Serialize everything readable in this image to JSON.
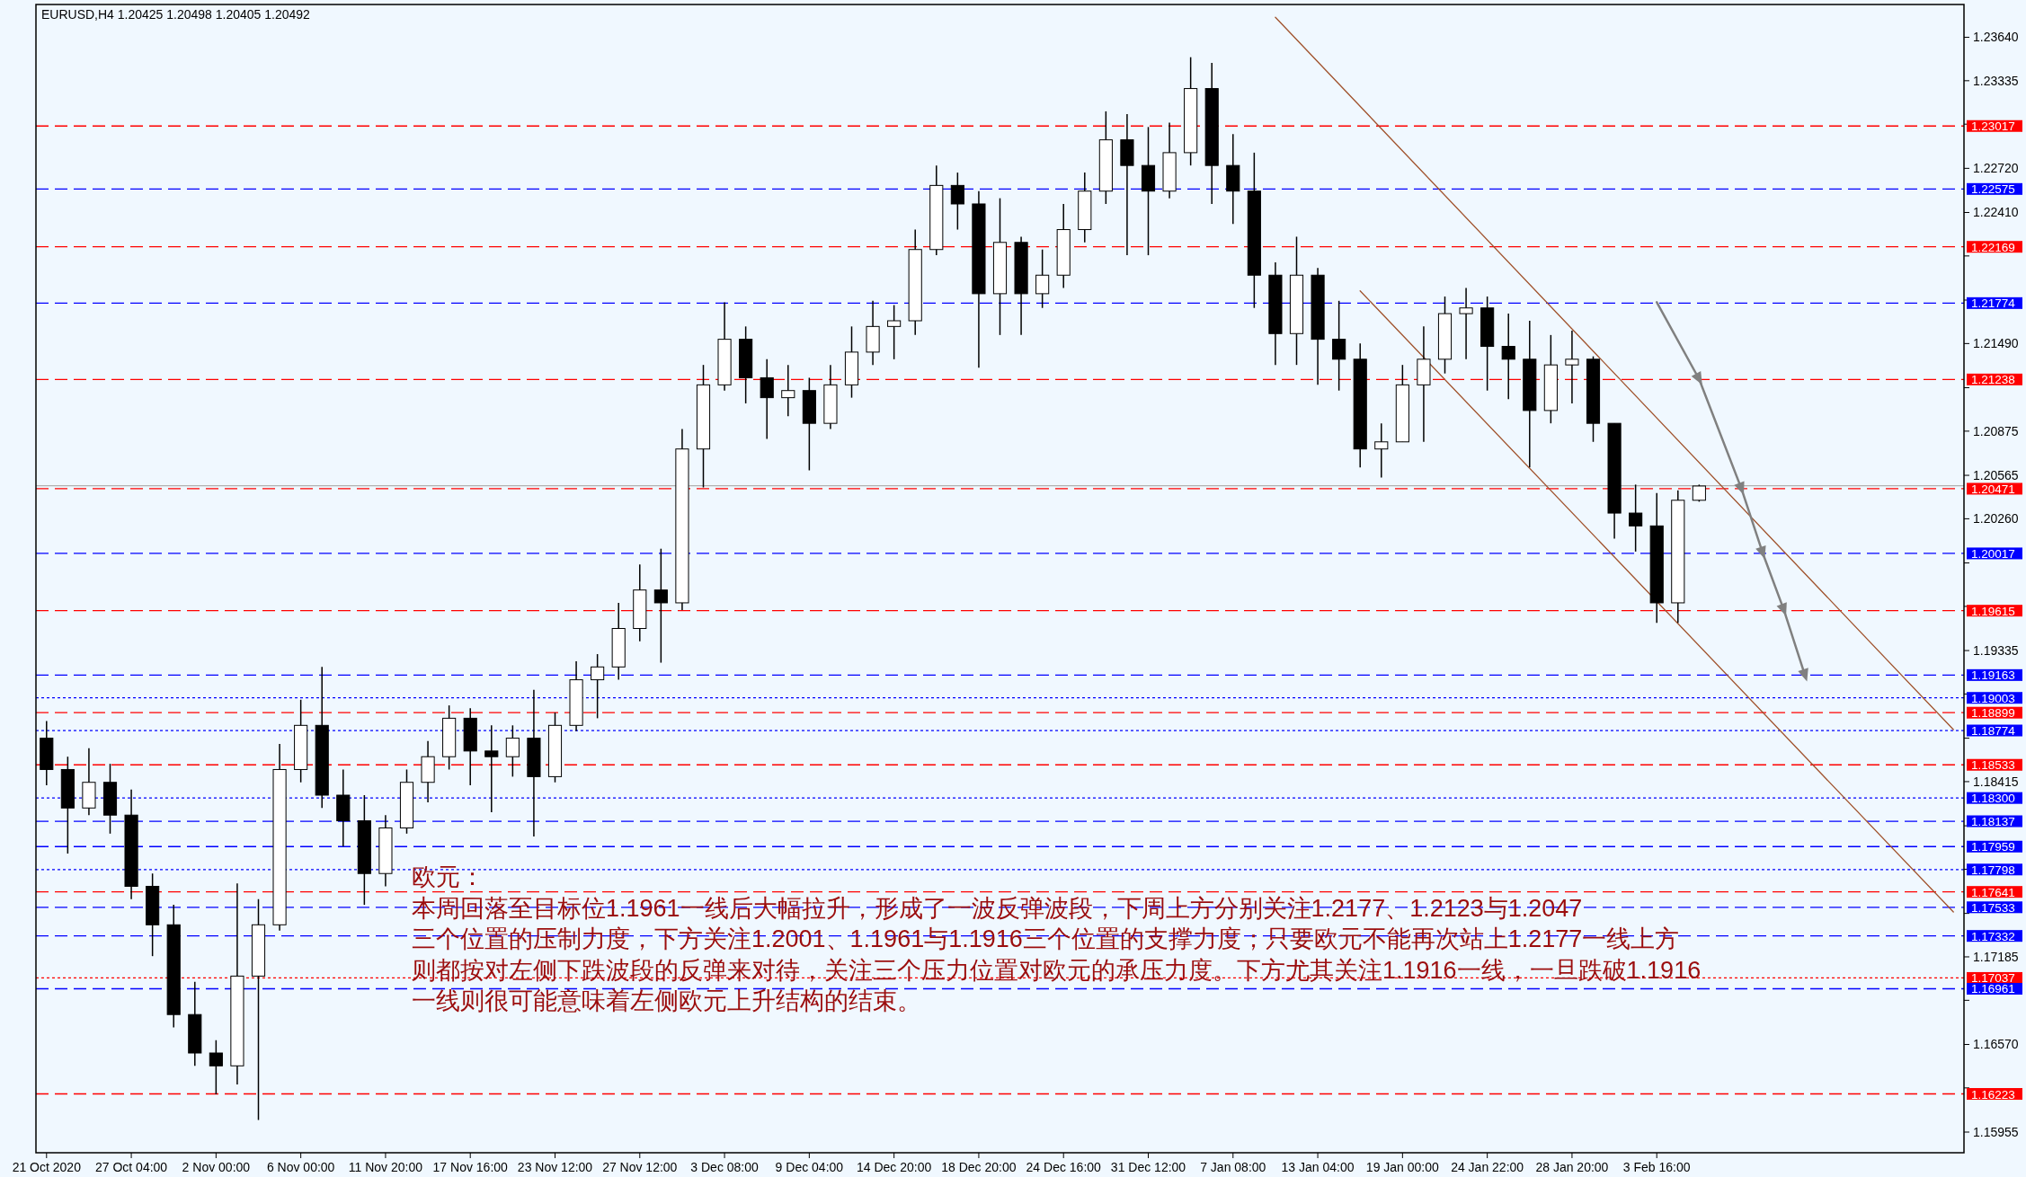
{
  "chart_data": {
    "type": "candlestick",
    "title": "EURUSD,H4  1.20425 1.20498 1.20405 1.20492",
    "categories": [
      "21 Oct 2020",
      null,
      null,
      null,
      "27 Oct 04:00",
      null,
      null,
      null,
      "2 Nov 00:00",
      null,
      null,
      null,
      "6 Nov 00:00",
      null,
      null,
      null,
      "11 Nov 20:00",
      null,
      null,
      null,
      "17 Nov 16:00",
      null,
      null,
      null,
      "23 Nov 12:00",
      null,
      null,
      null,
      "27 Nov 12:00",
      null,
      null,
      null,
      "3 Dec 08:00",
      null,
      null,
      null,
      "9 Dec 04:00",
      null,
      null,
      null,
      "14 Dec 20:00",
      null,
      null,
      null,
      "18 Dec 20:00",
      null,
      null,
      null,
      "24 Dec 16:00",
      null,
      null,
      null,
      "31 Dec 12:00",
      null,
      null,
      null,
      "7 Jan 08:00",
      null,
      null,
      null,
      "13 Jan 04:00",
      null,
      null,
      null,
      "19 Jan 00:00",
      null,
      null,
      null,
      "24 Jan 22:00",
      null,
      null,
      null,
      "28 Jan 20:00",
      null,
      null,
      null,
      "3 Feb 16:00",
      null,
      null,
      null,
      null,
      null,
      null,
      null,
      null,
      null,
      null,
      null,
      null,
      null,
      null
    ],
    "ohlc": [
      [
        1.1872,
        1.1884,
        1.1839,
        1.185
      ],
      [
        1.185,
        1.1859,
        1.1791,
        1.1823
      ],
      [
        1.1823,
        1.1865,
        1.1818,
        1.1841
      ],
      [
        1.1841,
        1.1854,
        1.1805,
        1.1818
      ],
      [
        1.1818,
        1.1836,
        1.1759,
        1.1768
      ],
      [
        1.1768,
        1.1777,
        1.1719,
        1.1741
      ],
      [
        1.1741,
        1.1755,
        1.1669,
        1.1678
      ],
      [
        1.1678,
        1.1701,
        1.1642,
        1.1651
      ],
      [
        1.1651,
        1.166,
        1.1622,
        1.1642
      ],
      [
        1.1642,
        1.177,
        1.1629,
        1.1705
      ],
      [
        1.1705,
        1.1759,
        1.1604,
        1.1741
      ],
      [
        1.1741,
        1.1868,
        1.1737,
        1.185
      ],
      [
        1.185,
        1.1899,
        1.1841,
        1.1881
      ],
      [
        1.1881,
        1.1922,
        1.1823,
        1.1832
      ],
      [
        1.1832,
        1.185,
        1.1796,
        1.1814
      ],
      [
        1.1814,
        1.1832,
        1.1755,
        1.1777
      ],
      [
        1.1777,
        1.1818,
        1.1768,
        1.1809
      ],
      [
        1.1809,
        1.185,
        1.1805,
        1.1841
      ],
      [
        1.1841,
        1.187,
        1.1827,
        1.1859
      ],
      [
        1.1859,
        1.1895,
        1.185,
        1.1886
      ],
      [
        1.1886,
        1.1893,
        1.1839,
        1.1863
      ],
      [
        1.1863,
        1.1881,
        1.182,
        1.1859
      ],
      [
        1.1859,
        1.1881,
        1.1845,
        1.1872
      ],
      [
        1.1872,
        1.1906,
        1.1803,
        1.1845
      ],
      [
        1.1845,
        1.189,
        1.1841,
        1.1881
      ],
      [
        1.1881,
        1.1926,
        1.1877,
        1.1913
      ],
      [
        1.1913,
        1.1931,
        1.1886,
        1.1922
      ],
      [
        1.1922,
        1.1967,
        1.1913,
        1.1949
      ],
      [
        1.1949,
        1.1994,
        1.194,
        1.1976
      ],
      [
        1.1976,
        1.2005,
        1.1925,
        1.1967
      ],
      [
        1.1967,
        1.2089,
        1.1962,
        1.2075
      ],
      [
        1.2075,
        1.2134,
        1.2048,
        1.212
      ],
      [
        1.212,
        1.2178,
        1.2116,
        1.2152
      ],
      [
        1.2152,
        1.2161,
        1.2107,
        1.2125
      ],
      [
        1.2125,
        1.2138,
        1.2082,
        1.2111
      ],
      [
        1.2111,
        1.2134,
        1.2098,
        1.2116
      ],
      [
        1.2116,
        1.2125,
        1.206,
        1.2093
      ],
      [
        1.2093,
        1.2134,
        1.2089,
        1.212
      ],
      [
        1.212,
        1.2161,
        1.2111,
        1.2143
      ],
      [
        1.2143,
        1.2179,
        1.2134,
        1.2161
      ],
      [
        1.2161,
        1.2176,
        1.2138,
        1.2165
      ],
      [
        1.2165,
        1.2229,
        1.2155,
        1.2215
      ],
      [
        1.2215,
        1.2274,
        1.2211,
        1.226
      ],
      [
        1.226,
        1.2269,
        1.2229,
        1.2247
      ],
      [
        1.2247,
        1.2256,
        1.2132,
        1.2184
      ],
      [
        1.2184,
        1.2251,
        1.2155,
        1.222
      ],
      [
        1.222,
        1.2224,
        1.2155,
        1.2184
      ],
      [
        1.2184,
        1.2215,
        1.2174,
        1.2197
      ],
      [
        1.2197,
        1.2247,
        1.2188,
        1.2229
      ],
      [
        1.2229,
        1.2269,
        1.222,
        1.2256
      ],
      [
        1.2256,
        1.2312,
        1.2247,
        1.2292
      ],
      [
        1.2292,
        1.231,
        1.2211,
        1.2274
      ],
      [
        1.2274,
        1.2301,
        1.2211,
        1.2256
      ],
      [
        1.2256,
        1.2304,
        1.2251,
        1.2283
      ],
      [
        1.2283,
        1.235,
        1.2274,
        1.2328
      ],
      [
        1.2328,
        1.2346,
        1.2247,
        1.2274
      ],
      [
        1.2274,
        1.2296,
        1.2233,
        1.2256
      ],
      [
        1.2256,
        1.2283,
        1.2174,
        1.2197
      ],
      [
        1.2197,
        1.2206,
        1.2134,
        1.2156
      ],
      [
        1.2156,
        1.2224,
        1.2134,
        1.2197
      ],
      [
        1.2197,
        1.2202,
        1.212,
        1.2152
      ],
      [
        1.2152,
        1.2179,
        1.2116,
        1.2138
      ],
      [
        1.2138,
        1.2149,
        1.2062,
        1.2075
      ],
      [
        1.2075,
        1.2093,
        1.2055,
        1.208
      ],
      [
        1.208,
        1.2134,
        1.208,
        1.212
      ],
      [
        1.212,
        1.2161,
        1.208,
        1.2138
      ],
      [
        1.2138,
        1.2182,
        1.2128,
        1.217
      ],
      [
        1.217,
        1.2188,
        1.2138,
        1.2174
      ],
      [
        1.2174,
        1.2182,
        1.2116,
        1.2147
      ],
      [
        1.2147,
        1.217,
        1.211,
        1.2138
      ],
      [
        1.2138,
        1.2165,
        1.2062,
        1.2102
      ],
      [
        1.2102,
        1.2155,
        1.2093,
        1.2134
      ],
      [
        1.2134,
        1.2158,
        1.2107,
        1.2138
      ],
      [
        1.2138,
        1.214,
        1.208,
        1.2093
      ],
      [
        1.2093,
        1.2093,
        1.2012,
        1.203
      ],
      [
        1.203,
        1.205,
        1.2003,
        1.2021
      ],
      [
        1.2021,
        1.2044,
        1.1953,
        1.1967
      ],
      [
        1.1967,
        1.2046,
        1.1953,
        1.2039
      ],
      [
        1.2039,
        1.205,
        1.2038,
        1.2049
      ],
      null,
      null,
      null,
      null,
      null,
      null,
      null,
      null,
      null,
      null,
      null,
      null
    ],
    "series": [
      {
        "type": "line",
        "color": "#a0522d",
        "values": [
          null,
          null,
          null,
          null,
          null,
          null,
          null,
          null,
          null,
          null,
          null,
          null,
          null,
          null,
          null,
          null,
          null,
          null,
          null,
          null,
          null,
          null,
          null,
          null,
          null,
          null,
          null,
          null,
          null,
          null,
          null,
          null,
          null,
          null,
          null,
          null,
          null,
          null,
          null,
          null,
          null,
          null,
          null,
          null,
          null,
          null,
          null,
          null,
          null,
          null,
          null,
          null,
          null,
          null,
          null,
          null,
          null,
          null,
          1.2378,
          null,
          null,
          null,
          null,
          null,
          null,
          null,
          null,
          null,
          null,
          null,
          null,
          null,
          null,
          null,
          null,
          null,
          null,
          null,
          null,
          null,
          null,
          null,
          null,
          null,
          null,
          null,
          null,
          null,
          null,
          null,
          1.1878
        ]
      },
      {
        "type": "line",
        "color": "#a0522d",
        "values": [
          null,
          null,
          null,
          null,
          null,
          null,
          null,
          null,
          null,
          null,
          null,
          null,
          null,
          null,
          null,
          null,
          null,
          null,
          null,
          null,
          null,
          null,
          null,
          null,
          null,
          null,
          null,
          null,
          null,
          null,
          null,
          null,
          null,
          null,
          null,
          null,
          null,
          null,
          null,
          null,
          null,
          null,
          null,
          null,
          null,
          null,
          null,
          null,
          null,
          null,
          null,
          null,
          null,
          null,
          null,
          null,
          null,
          null,
          null,
          null,
          null,
          null,
          1.2186,
          null,
          null,
          null,
          null,
          null,
          null,
          null,
          null,
          null,
          null,
          null,
          null,
          null,
          null,
          null,
          null,
          null,
          null,
          null,
          null,
          null,
          null,
          null,
          null,
          null,
          null,
          null,
          1.175
        ]
      },
      {
        "type": "line",
        "color": "#808080",
        "marker": "triangle",
        "values": [
          null,
          null,
          null,
          null,
          null,
          null,
          null,
          null,
          null,
          null,
          null,
          null,
          null,
          null,
          null,
          null,
          null,
          null,
          null,
          null,
          null,
          null,
          null,
          null,
          null,
          null,
          null,
          null,
          null,
          null,
          null,
          null,
          null,
          null,
          null,
          null,
          null,
          null,
          null,
          null,
          null,
          null,
          null,
          null,
          null,
          null,
          null,
          null,
          null,
          null,
          null,
          null,
          null,
          null,
          null,
          null,
          null,
          null,
          null,
          null,
          null,
          null,
          null,
          null,
          null,
          null,
          null,
          null,
          null,
          null,
          null,
          null,
          null,
          null,
          null,
          null,
          1.2178,
          null,
          1.2124,
          null,
          1.2047,
          1.2002,
          1.1962,
          1.1916,
          null,
          null,
          null,
          null,
          null,
          null,
          null
        ]
      }
    ],
    "ylim": [
      1.1581,
      1.2387
    ],
    "yticks": [
      {
        "value": 1.2364,
        "label": "1.23640"
      },
      {
        "value": 1.23335,
        "label": "1.23335"
      },
      {
        "value": 1.2303,
        "label": null
      },
      {
        "value": 1.2272,
        "label": "1.22720"
      },
      {
        "value": 1.2241,
        "label": "1.22410"
      },
      {
        "value": 1.22105,
        "label": null
      },
      {
        "value": 1.21795,
        "label": null
      },
      {
        "value": 1.2149,
        "label": "1.21490"
      },
      {
        "value": 1.2118,
        "label": null
      },
      {
        "value": 1.20875,
        "label": "1.20875"
      },
      {
        "value": 1.20565,
        "label": "1.20565"
      },
      {
        "value": 1.2026,
        "label": "1.20260"
      },
      {
        "value": 1.1995,
        "label": null
      },
      {
        "value": 1.19645,
        "label": null
      },
      {
        "value": 1.19335,
        "label": "1.19335"
      },
      {
        "value": 1.1903,
        "label": null
      },
      {
        "value": 1.1872,
        "label": null
      },
      {
        "value": 1.18415,
        "label": "1.18415"
      },
      {
        "value": 1.18105,
        "label": null
      },
      {
        "value": 1.178,
        "label": null
      },
      {
        "value": 1.1749,
        "label": null
      },
      {
        "value": 1.17185,
        "label": "1.17185"
      },
      {
        "value": 1.1688,
        "label": null
      },
      {
        "value": 1.1657,
        "label": "1.16570"
      },
      {
        "value": 1.16265,
        "label": null
      },
      {
        "value": 1.15955,
        "label": "1.15955"
      }
    ],
    "ref_lines": [
      {
        "axis": "y",
        "value": 1.20492,
        "color": "#b0b0b0",
        "line_style": "solid"
      },
      {
        "axis": "y",
        "value": 1.23017,
        "label": "1.23017",
        "color": "#ff0000",
        "line_style": "dashed"
      },
      {
        "axis": "y",
        "value": 1.22575,
        "label": "1.22575",
        "color": "#0000ff",
        "line_style": "dashed"
      },
      {
        "axis": "y",
        "value": 1.22169,
        "label": "1.22169",
        "color": "#ff0000",
        "line_style": "dashed"
      },
      {
        "axis": "y",
        "value": 1.21774,
        "label": "1.21774",
        "color": "#0000ff",
        "line_style": "dashed"
      },
      {
        "axis": "y",
        "value": 1.21238,
        "label": "1.21238",
        "color": "#ff0000",
        "line_style": "dashed"
      },
      {
        "axis": "y",
        "value": 1.20471,
        "label": "1.20471",
        "color": "#ff0000",
        "line_style": "dashed"
      },
      {
        "axis": "y",
        "value": 1.20017,
        "label": "1.20017",
        "color": "#0000ff",
        "line_style": "dashed"
      },
      {
        "axis": "y",
        "value": 1.19615,
        "label": "1.19615",
        "color": "#ff0000",
        "line_style": "dashed"
      },
      {
        "axis": "y",
        "value": 1.19163,
        "label": "1.19163",
        "color": "#0000ff",
        "line_style": "dashed"
      },
      {
        "axis": "y",
        "value": 1.19003,
        "label": "1.19003",
        "color": "#0000ff",
        "line_style": "dotted"
      },
      {
        "axis": "y",
        "value": 1.18899,
        "label": "1.18899",
        "color": "#ff0000",
        "line_style": "dashed"
      },
      {
        "axis": "y",
        "value": 1.18774,
        "label": "1.18774",
        "color": "#0000ff",
        "line_style": "dotted"
      },
      {
        "axis": "y",
        "value": 1.18533,
        "label": "1.18533",
        "color": "#ff0000",
        "line_style": "dashed"
      },
      {
        "axis": "y",
        "value": 1.183,
        "label": "1.18300",
        "color": "#0000ff",
        "line_style": "dotted"
      },
      {
        "axis": "y",
        "value": 1.18137,
        "label": "1.18137",
        "color": "#0000ff",
        "line_style": "dashed"
      },
      {
        "axis": "y",
        "value": 1.17959,
        "label": "1.17959",
        "color": "#0000ff",
        "line_style": "dashed"
      },
      {
        "axis": "y",
        "value": 1.17798,
        "label": "1.17798",
        "color": "#0000ff",
        "line_style": "dotted"
      },
      {
        "axis": "y",
        "value": 1.17641,
        "label": "1.17641",
        "color": "#ff0000",
        "line_style": "dashed"
      },
      {
        "axis": "y",
        "value": 1.17533,
        "label": "1.17533",
        "color": "#0000ff",
        "line_style": "dashed"
      },
      {
        "axis": "y",
        "value": 1.17332,
        "label": "1.17332",
        "color": "#0000ff",
        "line_style": "dashed"
      },
      {
        "axis": "y",
        "value": 1.17037,
        "label": "1.17037",
        "color": "#ff0000",
        "line_style": "dotted"
      },
      {
        "axis": "y",
        "value": 1.16961,
        "label": "1.16961",
        "color": "#0000ff",
        "line_style": "dashed"
      },
      {
        "axis": "y",
        "value": 1.16223,
        "label": "1.16223",
        "color": "#ff0000",
        "line_style": "dashed"
      }
    ],
    "annotations": [
      "欧元：",
      "本周回落至目标位1.1961一线后大幅拉升，形成了一波反弹波段，下周上方分别关注1.2177、1.2123与1.2047",
      "三个位置的压制力度，下方关注1.2001、1.1961与1.1916三个位置的支撑力度；只要欧元不能再次站上1.2177一线上方",
      "则都按对左侧下跌波段的反弹来对待，关注三个压力位置对欧元的承压力度。下方尤其关注1.1916一线，一旦跌破1.1916",
      "一线则很可能意味着左侧欧元上升结构的结束。"
    ]
  }
}
